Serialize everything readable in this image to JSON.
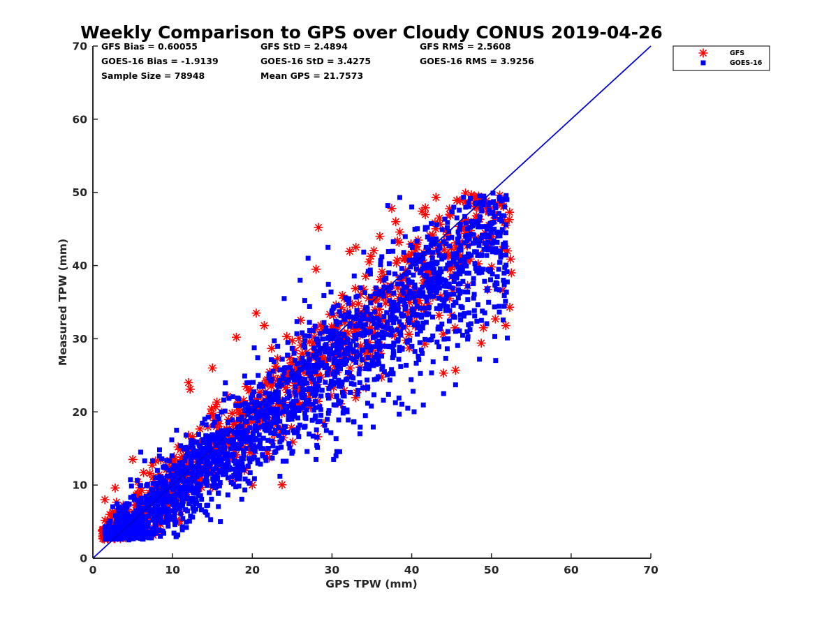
{
  "chart_data": {
    "type": "scatter",
    "title": "Weekly Comparison to GPS over Cloudy CONUS 2019-04-26",
    "xlabel": "GPS TPW (mm)",
    "ylabel": "Measured TPW (mm)",
    "xlim": [
      0,
      70
    ],
    "ylim": [
      0,
      70
    ],
    "xticks": [
      "0",
      "10",
      "20",
      "30",
      "40",
      "50",
      "60",
      "70"
    ],
    "yticks": [
      "0",
      "10",
      "20",
      "30",
      "40",
      "50",
      "60",
      "70"
    ],
    "grid": false,
    "legend_position": "top-right-outside",
    "reference_line": {
      "x": [
        0,
        70
      ],
      "y": [
        0,
        70
      ],
      "color": "#0000cc"
    },
    "stats": [
      [
        "GFS Bias = 0.60055",
        "GFS StD = 2.4894",
        "GFS RMS = 2.5608"
      ],
      [
        "GOES-16 Bias = -1.9139",
        "GOES-16 StD = 3.4275",
        "GOES-16 RMS = 3.9256"
      ],
      [
        "Sample Size = 78948",
        "Mean GPS = 21.7573"
      ]
    ],
    "series": [
      {
        "name": "GFS",
        "marker": "asterisk",
        "color": "#ff0000",
        "envelope": {
          "x_range": [
            1.2,
            52.5
          ],
          "slope": 0.93,
          "intercept": 0.6,
          "spread": 3.0
        },
        "outliers": [
          [
            1.5,
            8.0
          ],
          [
            2.8,
            9.6
          ],
          [
            5.0,
            13.5
          ],
          [
            12.2,
            23.1
          ],
          [
            18.0,
            30.2
          ],
          [
            20.5,
            33.5
          ],
          [
            28.3,
            45.2
          ],
          [
            28.2,
            16.6
          ],
          [
            21.5,
            31.8
          ],
          [
            28.0,
            39.5
          ],
          [
            33.0,
            42.5
          ],
          [
            37.5,
            47.8
          ],
          [
            38.0,
            46.0
          ],
          [
            44.0,
            25.3
          ],
          [
            45.5,
            25.7
          ],
          [
            47.8,
            49.3
          ],
          [
            49.5,
            48.0
          ],
          [
            50.5,
            48.5
          ],
          [
            51.5,
            48.1
          ],
          [
            52.0,
            42.0
          ],
          [
            52.5,
            39.0
          ],
          [
            52.3,
            34.3
          ],
          [
            51.8,
            31.8
          ],
          [
            50.5,
            32.7
          ],
          [
            49.0,
            31.5
          ],
          [
            19.0,
            12.0
          ],
          [
            20.0,
            10.0
          ],
          [
            12.0,
            24.0
          ],
          [
            15.0,
            26.0
          ],
          [
            36.0,
            44.0
          ],
          [
            1.2,
            3.8
          ]
        ]
      },
      {
        "name": "GOES-16",
        "marker": "square",
        "color": "#0000ff",
        "envelope": {
          "x_range": [
            1.5,
            52.0
          ],
          "slope": 0.88,
          "intercept": 0.0,
          "spread": 3.6
        },
        "outliers": [
          [
            38.5,
            49.3
          ],
          [
            37.0,
            48.2
          ],
          [
            40.0,
            48.0
          ],
          [
            48.5,
            27.2
          ],
          [
            45.5,
            23.7
          ],
          [
            44.0,
            22.5
          ],
          [
            39.5,
            20.5
          ],
          [
            30.2,
            13.5
          ],
          [
            30.5,
            14.0
          ],
          [
            28.0,
            13.5
          ],
          [
            52.0,
            30.1
          ],
          [
            45.5,
            31.0
          ],
          [
            51.5,
            38.0
          ],
          [
            29.5,
            42.5
          ],
          [
            24.0,
            35.5
          ],
          [
            22.5,
            16.0
          ],
          [
            20.5,
            15.2
          ],
          [
            26.0,
            38.0
          ],
          [
            10.5,
            17.5
          ],
          [
            6.0,
            14.5
          ],
          [
            4.5,
            2.5
          ],
          [
            16.0,
            5.0
          ],
          [
            33.5,
            17.0
          ],
          [
            27.0,
            41.0
          ]
        ]
      }
    ]
  }
}
